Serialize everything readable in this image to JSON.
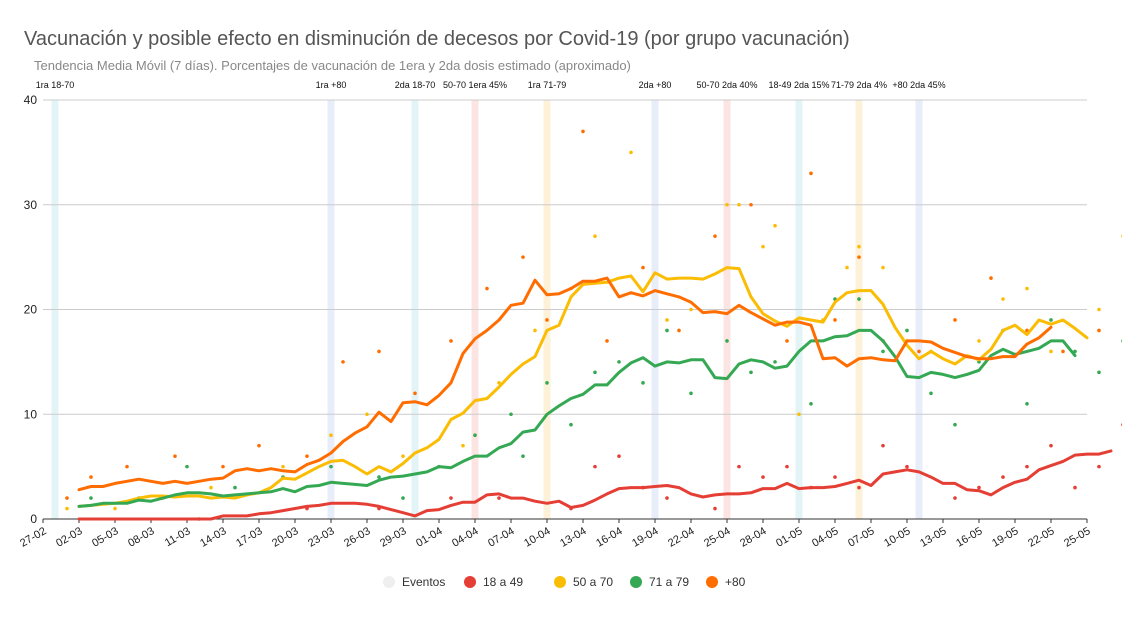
{
  "title": "Vacunación y posible efecto en disminución de decesos por Covid-19 (por grupo vacunación)",
  "subtitle": "Tendencia Media Móvil (7 días). Porcentajes de vacunación de 1era y 2da dosis estimado (aproximado)",
  "chart_data": {
    "type": "line",
    "ylim": [
      0,
      40
    ],
    "yticks": [
      0,
      10,
      20,
      30,
      40
    ],
    "grid": true,
    "legend_position": "bottom",
    "x_tick_labels": [
      "27-02",
      "02-03",
      "05-03",
      "08-03",
      "11-03",
      "14-03",
      "17-03",
      "20-03",
      "23-03",
      "26-03",
      "29-03",
      "01-04",
      "04-04",
      "07-04",
      "10-04",
      "13-04",
      "16-04",
      "19-04",
      "22-04",
      "25-04",
      "28-04",
      "01-05",
      "04-05",
      "07-05",
      "10-05",
      "13-05",
      "16-05",
      "19-05",
      "22-05",
      "25-05"
    ],
    "x_tick_day_step": 3,
    "events": [
      {
        "label": "1ra 18-70",
        "day": 1,
        "color": "#e3f4f6"
      },
      {
        "label": "1ra +80",
        "day": 24,
        "color": "#e8edfa"
      },
      {
        "label": "2da 18-70",
        "day": 31,
        "color": "#e3f4f6"
      },
      {
        "label": "50-70 1era 45%",
        "day": 36,
        "color": "#fbe4e2"
      },
      {
        "label": "1ra 71-79",
        "day": 42,
        "color": "#fdf1d8"
      },
      {
        "label": "2da +80",
        "day": 51,
        "color": "#e8edfa"
      },
      {
        "label": "50-70 2da 40%",
        "day": 57,
        "color": "#fbe4e2"
      },
      {
        "label": "18-49 2da 15%",
        "day": 63,
        "color": "#e3f4f6"
      },
      {
        "label": "71-79 2da 4%",
        "day": 68,
        "color": "#fdf1d8"
      },
      {
        "label": "+80 2da 45%",
        "day": 73,
        "color": "#e8edfa"
      }
    ],
    "series": [
      {
        "name": "18 a 49",
        "color": "#e53e35",
        "start_day": 3,
        "values": [
          0,
          0,
          0,
          0,
          0,
          0,
          0,
          0,
          0,
          0,
          0,
          0,
          0.3,
          0.3,
          0.3,
          0.5,
          0.6,
          0.8,
          1.0,
          1.2,
          1.3,
          1.5,
          1.5,
          1.5,
          1.4,
          1.2,
          0.9,
          0.6,
          0.3,
          0.8,
          0.9,
          1.3,
          1.6,
          1.6,
          2.3,
          2.4,
          2.0,
          2.0,
          1.7,
          1.5,
          1.7,
          1.1,
          1.3,
          1.8,
          2.4,
          2.9,
          3.0,
          3.0,
          3.1,
          3.2,
          3.0,
          2.4,
          2.1,
          2.3,
          2.4,
          2.4,
          2.5,
          2.9,
          2.9,
          3.4,
          2.9,
          3.0,
          3.0,
          3.1,
          3.4,
          3.7,
          3.2,
          4.3,
          4.5,
          4.7,
          4.5,
          4.0,
          3.4,
          3.4,
          2.8,
          2.7,
          2.3,
          3.0,
          3.5,
          3.8,
          4.7,
          5.1,
          5.5,
          6.1,
          6.2,
          6.2,
          6.5
        ]
      },
      {
        "name": "50 a 70",
        "color": "#fbbc04",
        "start_day": 3,
        "values": [
          1.2,
          1.3,
          1.4,
          1.5,
          1.7,
          2.0,
          2.2,
          2.2,
          2.1,
          2.2,
          2.2,
          2.0,
          2.1,
          2.0,
          2.3,
          2.5,
          3.0,
          3.9,
          3.8,
          4.4,
          5.0,
          5.5,
          5.6,
          5.0,
          4.3,
          5.0,
          4.5,
          5.3,
          6.3,
          6.8,
          7.6,
          9.5,
          10.1,
          11.3,
          11.5,
          12.6,
          13.8,
          14.8,
          15.5,
          18.0,
          18.5,
          21.2,
          22.4,
          22.5,
          22.6,
          23.0,
          23.2,
          21.7,
          23.5,
          22.9,
          23.0,
          23.0,
          22.9,
          23.4,
          24.0,
          23.9,
          21.2,
          19.6,
          18.9,
          18.4,
          19.2,
          19.0,
          18.8,
          20.7,
          21.6,
          21.8,
          21.8,
          20.5,
          18.3,
          16.6,
          15.3,
          16.0,
          15.3,
          14.8,
          15.6,
          15.2,
          16.2,
          18.0,
          18.5,
          17.6,
          19.0,
          18.6,
          19.0,
          18.2,
          17.3
        ]
      },
      {
        "name": "71 a 79",
        "color": "#34a853",
        "start_day": 3,
        "values": [
          1.2,
          1.3,
          1.5,
          1.5,
          1.5,
          1.8,
          1.7,
          2.0,
          2.3,
          2.5,
          2.5,
          2.4,
          2.2,
          2.3,
          2.4,
          2.5,
          2.6,
          2.9,
          2.6,
          3.1,
          3.2,
          3.5,
          3.4,
          3.3,
          3.2,
          3.7,
          4.0,
          4.1,
          4.3,
          4.5,
          5.0,
          4.9,
          5.5,
          6.0,
          6.0,
          6.8,
          7.2,
          8.3,
          8.5,
          10.0,
          10.8,
          11.5,
          11.9,
          12.8,
          12.8,
          14.0,
          14.9,
          15.4,
          14.6,
          15.0,
          14.9,
          15.2,
          15.2,
          13.5,
          13.4,
          14.8,
          15.2,
          15.0,
          14.4,
          14.6,
          16.0,
          17.0,
          17.0,
          17.4,
          17.5,
          18.0,
          18.0,
          17.0,
          15.5,
          13.6,
          13.5,
          14.0,
          13.8,
          13.5,
          13.8,
          14.2,
          15.6,
          16.2,
          15.7,
          16.0,
          16.3,
          17.0,
          17.0,
          15.6
        ]
      },
      {
        "name": "+80",
        "color": "#ff6d01",
        "start_day": 3,
        "values": [
          2.8,
          3.1,
          3.1,
          3.4,
          3.6,
          3.8,
          3.6,
          3.4,
          3.6,
          3.4,
          3.6,
          3.8,
          3.9,
          4.6,
          4.8,
          4.6,
          4.8,
          4.6,
          4.5,
          5.2,
          5.6,
          6.3,
          7.4,
          8.2,
          8.8,
          10.2,
          9.3,
          11.1,
          11.2,
          10.9,
          11.8,
          13.0,
          15.8,
          17.2,
          18.0,
          19.0,
          20.4,
          20.6,
          22.8,
          21.4,
          21.5,
          22.0,
          22.7,
          22.7,
          23.0,
          21.2,
          21.6,
          21.3,
          21.8,
          21.5,
          21.2,
          20.7,
          19.7,
          19.8,
          19.6,
          20.4,
          19.7,
          19.1,
          18.5,
          18.8,
          18.8,
          18.5,
          15.3,
          15.4,
          14.6,
          15.3,
          15.4,
          15.2,
          15.1,
          17.0,
          17.0,
          16.9,
          16.3,
          15.9,
          15.5,
          15.3,
          15.3,
          15.5,
          15.5,
          16.7,
          17.3,
          18.3
        ]
      }
    ],
    "scatter": [
      {
        "series": "18 a 49",
        "points": [
          [
            13,
            0
          ],
          [
            22,
            1
          ],
          [
            28,
            1
          ],
          [
            34,
            2
          ],
          [
            38,
            2
          ],
          [
            44,
            1
          ],
          [
            46,
            5
          ],
          [
            48,
            6
          ],
          [
            50,
            3
          ],
          [
            52,
            2
          ],
          [
            56,
            1
          ],
          [
            58,
            5
          ],
          [
            60,
            4
          ],
          [
            62,
            5
          ],
          [
            64,
            3
          ],
          [
            66,
            4
          ],
          [
            68,
            3
          ],
          [
            70,
            7
          ],
          [
            72,
            5
          ],
          [
            76,
            2
          ],
          [
            78,
            3
          ],
          [
            80,
            4
          ],
          [
            82,
            5
          ],
          [
            84,
            7
          ],
          [
            86,
            3
          ],
          [
            88,
            5
          ],
          [
            90,
            9
          ],
          [
            92,
            7
          ],
          [
            95,
            5
          ],
          [
            96,
            5
          ]
        ]
      },
      {
        "series": "50 a 70",
        "points": [
          [
            2,
            1
          ],
          [
            6,
            1
          ],
          [
            10,
            2
          ],
          [
            14,
            3
          ],
          [
            20,
            5
          ],
          [
            24,
            8
          ],
          [
            27,
            10
          ],
          [
            30,
            6
          ],
          [
            35,
            7
          ],
          [
            38,
            13
          ],
          [
            41,
            18
          ],
          [
            44,
            22
          ],
          [
            46,
            27
          ],
          [
            49,
            35
          ],
          [
            52,
            19
          ],
          [
            54,
            20
          ],
          [
            57,
            30
          ],
          [
            58,
            30
          ],
          [
            60,
            26
          ],
          [
            61,
            28
          ],
          [
            63,
            10
          ],
          [
            65,
            19
          ],
          [
            67,
            24
          ],
          [
            68,
            26
          ],
          [
            70,
            24
          ],
          [
            72,
            17
          ],
          [
            74,
            16
          ],
          [
            78,
            17
          ],
          [
            80,
            21
          ],
          [
            82,
            22
          ],
          [
            84,
            16
          ],
          [
            88,
            20
          ],
          [
            90,
            27
          ],
          [
            92,
            10
          ],
          [
            95,
            16
          ]
        ]
      },
      {
        "series": "71 a 79",
        "points": [
          [
            4,
            2
          ],
          [
            8,
            2
          ],
          [
            12,
            5
          ],
          [
            16,
            3
          ],
          [
            20,
            4
          ],
          [
            24,
            5
          ],
          [
            28,
            4
          ],
          [
            30,
            2
          ],
          [
            33,
            5
          ],
          [
            36,
            8
          ],
          [
            39,
            10
          ],
          [
            40,
            6
          ],
          [
            42,
            13
          ],
          [
            44,
            9
          ],
          [
            46,
            14
          ],
          [
            48,
            15
          ],
          [
            50,
            13
          ],
          [
            52,
            18
          ],
          [
            54,
            12
          ],
          [
            57,
            17
          ],
          [
            59,
            14
          ],
          [
            61,
            15
          ],
          [
            64,
            11
          ],
          [
            66,
            21
          ],
          [
            68,
            21
          ],
          [
            70,
            16
          ],
          [
            72,
            18
          ],
          [
            74,
            12
          ],
          [
            76,
            9
          ],
          [
            78,
            15
          ],
          [
            80,
            18
          ],
          [
            82,
            11
          ],
          [
            84,
            19
          ],
          [
            86,
            16
          ],
          [
            88,
            14
          ],
          [
            90,
            17
          ],
          [
            94,
            16
          ],
          [
            96,
            9
          ]
        ]
      },
      {
        "series": "+80",
        "points": [
          [
            2,
            2
          ],
          [
            4,
            4
          ],
          [
            7,
            5
          ],
          [
            11,
            6
          ],
          [
            15,
            5
          ],
          [
            18,
            7
          ],
          [
            22,
            6
          ],
          [
            25,
            15
          ],
          [
            28,
            16
          ],
          [
            31,
            12
          ],
          [
            34,
            17
          ],
          [
            37,
            22
          ],
          [
            40,
            25
          ],
          [
            42,
            19
          ],
          [
            45,
            37
          ],
          [
            47,
            17
          ],
          [
            50,
            24
          ],
          [
            53,
            18
          ],
          [
            56,
            27
          ],
          [
            59,
            30
          ],
          [
            62,
            17
          ],
          [
            64,
            33
          ],
          [
            66,
            19
          ],
          [
            68,
            25
          ],
          [
            70,
            17
          ],
          [
            73,
            16
          ],
          [
            76,
            19
          ],
          [
            79,
            23
          ],
          [
            82,
            18
          ],
          [
            85,
            16
          ],
          [
            88,
            18
          ],
          [
            91,
            12
          ],
          [
            93,
            21
          ],
          [
            94,
            20
          ],
          [
            96,
            21
          ]
        ]
      }
    ]
  },
  "legend": {
    "items": [
      {
        "label": "Eventos",
        "color": "#efefef"
      },
      {
        "label": "18 a 49",
        "color": "#e53e35"
      },
      {
        "label": "50 a 70",
        "color": "#fbbc04"
      },
      {
        "label": "71 a 79",
        "color": "#34a853"
      },
      {
        "label": "+80",
        "color": "#ff6d01"
      }
    ]
  }
}
